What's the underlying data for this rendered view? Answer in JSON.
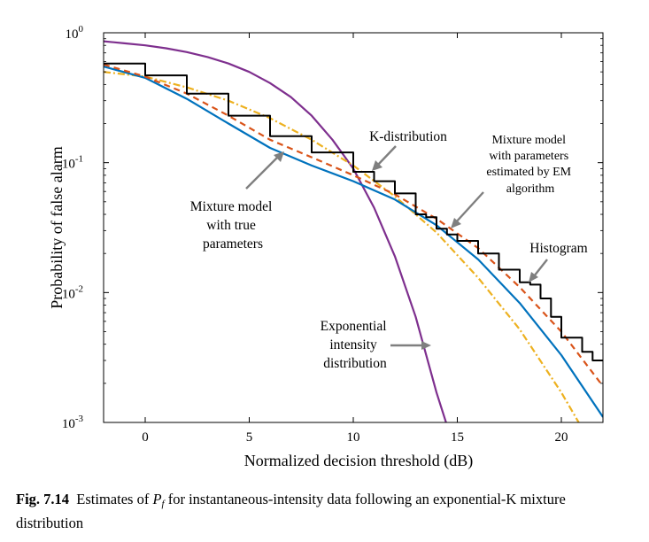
{
  "chart_data": {
    "type": "line",
    "xlabel": "Normalized decision threshold (dB)",
    "ylabel": "Probability of false alarm",
    "xlim": [
      -2,
      22
    ],
    "ylim": [
      0.001,
      1
    ],
    "yscale": "log",
    "x_ticks": [
      0,
      5,
      10,
      15,
      20
    ],
    "x_tick_labels": [
      "0",
      "5",
      "10",
      "15",
      "20"
    ],
    "y_ticks": [
      0.001,
      0.01,
      0.1,
      1
    ],
    "y_tick_bases": [
      "10",
      "10",
      "10",
      "10"
    ],
    "y_tick_exponents": [
      "-3",
      "-2",
      "-1",
      "0"
    ],
    "grid": false,
    "legend": "none",
    "series": [
      {
        "name": "Exponential intensity distribution",
        "color": "#7e2f8e",
        "style": "solid",
        "x": [
          -2,
          -1,
          0,
          1,
          2,
          3,
          4,
          5,
          6,
          7,
          8,
          9,
          10,
          11,
          12,
          13,
          14,
          14.6
        ],
        "y": [
          0.86,
          0.83,
          0.8,
          0.76,
          0.71,
          0.65,
          0.58,
          0.5,
          0.41,
          0.32,
          0.23,
          0.15,
          0.09,
          0.045,
          0.019,
          0.0065,
          0.0017,
          0.00085
        ]
      },
      {
        "name": "K-distribution",
        "color": "#edb120",
        "style": "dash-dot",
        "x": [
          -2,
          0,
          2,
          4,
          6,
          8,
          10,
          12,
          14,
          16,
          18,
          20,
          21
        ],
        "y": [
          0.5,
          0.46,
          0.38,
          0.3,
          0.22,
          0.15,
          0.095,
          0.055,
          0.029,
          0.013,
          0.0052,
          0.0017,
          0.0009
        ]
      },
      {
        "name": "Mixture model with true parameters",
        "color": "#0072bd",
        "style": "solid",
        "x": [
          -2,
          0,
          2,
          4,
          6,
          8,
          10,
          12,
          14,
          16,
          18,
          20,
          22
        ],
        "y": [
          0.55,
          0.45,
          0.31,
          0.2,
          0.13,
          0.095,
          0.072,
          0.052,
          0.033,
          0.018,
          0.0083,
          0.0033,
          0.0011
        ]
      },
      {
        "name": "Mixture model with parameters estimated by EM algorithm",
        "color": "#d95319",
        "style": "dashed",
        "x": [
          -2,
          0,
          2,
          4,
          6,
          8,
          10,
          12,
          14,
          16,
          18,
          20,
          22
        ],
        "y": [
          0.57,
          0.46,
          0.34,
          0.23,
          0.15,
          0.11,
          0.08,
          0.057,
          0.037,
          0.022,
          0.011,
          0.005,
          0.0019
        ]
      },
      {
        "name": "Histogram",
        "color": "#000000",
        "style": "step",
        "x": [
          -2,
          0,
          2,
          4,
          6,
          8,
          10,
          11,
          12,
          13,
          13.5,
          14,
          14.5,
          15,
          16,
          17,
          18,
          18.5,
          19,
          19.5,
          20,
          20.5,
          21,
          21.5,
          22
        ],
        "y": [
          0.58,
          0.47,
          0.34,
          0.23,
          0.16,
          0.12,
          0.085,
          0.072,
          0.058,
          0.04,
          0.038,
          0.031,
          0.028,
          0.025,
          0.02,
          0.015,
          0.012,
          0.0115,
          0.009,
          0.0065,
          0.0045,
          0.0045,
          0.0035,
          0.003,
          0.003
        ]
      }
    ],
    "annotations": [
      {
        "lines": [
          "K-distribution"
        ]
      },
      {
        "lines": [
          "Mixture model",
          "with parameters",
          "estimated by EM",
          "algorithm"
        ]
      },
      {
        "lines": [
          "Histogram"
        ]
      },
      {
        "lines": [
          "Mixture model",
          "with true",
          "parameters"
        ]
      },
      {
        "lines": [
          "Exponential",
          "intensity",
          "distribution"
        ]
      }
    ]
  },
  "caption": {
    "label": "Fig. 7.14",
    "text_before": "Estimates of",
    "symbol": "P",
    "symbol_sub": "f",
    "text_after": "for instantaneous-intensity data following an exponential-K mixture",
    "text_line2": "distribution"
  }
}
